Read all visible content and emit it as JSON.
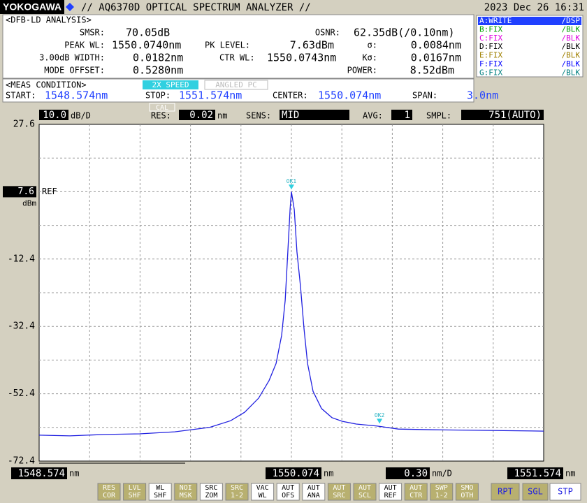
{
  "header": {
    "brand": "YOKOGAWA",
    "title": "// AQ6370D OPTICAL SPECTRUM ANALYZER //",
    "datetime": "2023 Dec 26 16:31"
  },
  "analysis": {
    "title": "<DFB-LD ANALYSIS>",
    "items": [
      {
        "label": "SMSR:",
        "value": "70.05dB"
      },
      {
        "label": "OSNR:",
        "value": "62.35dB(/0.10nm)"
      },
      {
        "label": "PEAK WL:",
        "value": "1550.0740nm"
      },
      {
        "label": "PK LEVEL:",
        "value": "7.63dBm"
      },
      {
        "label": "σ:",
        "value": "0.0084nm"
      },
      {
        "label": "3.00dB WIDTH:",
        "value": "0.0182nm"
      },
      {
        "label": "CTR WL:",
        "value": "1550.0743nm"
      },
      {
        "label": "Kσ:",
        "value": "0.0167nm"
      },
      {
        "label": "MODE OFFSET:",
        "value": "0.5280nm"
      },
      {
        "label": "POWER:",
        "value": "8.52dBm"
      }
    ]
  },
  "traces": [
    {
      "name": "A:WRITE",
      "mode": "/DSP",
      "color": "#ffffff",
      "active": true
    },
    {
      "name": "B:FIX",
      "mode": "/BLK",
      "color": "#00a000",
      "active": false
    },
    {
      "name": "C:FIX",
      "mode": "/BLK",
      "color": "#e000e0",
      "active": false
    },
    {
      "name": "D:FIX",
      "mode": "/BLK",
      "color": "#000000",
      "active": false
    },
    {
      "name": "E:FIX",
      "mode": "/BLK",
      "color": "#a08000",
      "active": false
    },
    {
      "name": "F:FIX",
      "mode": "/BLK",
      "color": "#0000ff",
      "active": false
    },
    {
      "name": "G:FIX",
      "mode": "/BLK",
      "color": "#008080",
      "active": false
    }
  ],
  "meas": {
    "title": "<MEAS CONDITION>",
    "tags": [
      "2X SPEED",
      "ANGLED PC"
    ],
    "fields": [
      {
        "label": "START:",
        "value": "1548.574nm"
      },
      {
        "label": "STOP:",
        "value": "1551.574nm"
      },
      {
        "label": "CENTER:",
        "value": "1550.074nm"
      },
      {
        "label": "SPAN:",
        "value": "3.0nm"
      }
    ]
  },
  "settings": {
    "scale": {
      "value": 10,
      "label": "10.0"
    },
    "scale_unit": "dB/D",
    "cal": "CAL",
    "res_label": "RES:",
    "res": 0.02,
    "res_unit": "nm",
    "sens_label": "SENS:",
    "sens": "MID",
    "avg_label": "AVG:",
    "avg": 1,
    "smpl_label": "SMPL:",
    "smpl": "751(AUTO)"
  },
  "plot": {
    "ylim": [
      -72.4,
      27.6
    ],
    "yticks": [
      27.6,
      -12.4,
      -32.4,
      -52.4,
      -72.4
    ],
    "ref_level": 7.6,
    "ref_label": "REF",
    "ref_unit": "dBm",
    "xlim": [
      1548.574,
      1551.574
    ],
    "center": 1550.074,
    "x_unit": "nm",
    "x_per_div": {
      "value": 0.3,
      "label": "0.30"
    },
    "x_per_div_unit": "nm/D",
    "grid": true,
    "color": "#2020e0",
    "trace": {
      "x": [
        1548.574,
        1548.757,
        1548.965,
        1549.172,
        1549.38,
        1549.588,
        1549.713,
        1549.796,
        1549.879,
        1549.941,
        1549.983,
        1550.016,
        1550.037,
        1550.053,
        1550.066,
        1550.074,
        1550.091,
        1550.107,
        1550.128,
        1550.149,
        1550.17,
        1550.203,
        1550.253,
        1550.315,
        1550.377,
        1550.46,
        1550.585,
        1550.71,
        1550.918,
        1551.25,
        1551.574
      ],
      "y": [
        -64.7,
        -64.9,
        -64.5,
        -64.3,
        -63.7,
        -62.4,
        -60.4,
        -57.9,
        -53.7,
        -48.5,
        -43.4,
        -35.1,
        -24.7,
        -10.2,
        2.3,
        7.63,
        2.3,
        -10.2,
        -20.5,
        -33.0,
        -43.4,
        -51.7,
        -56.8,
        -59.5,
        -60.6,
        -61.4,
        -62.0,
        -62.9,
        -63.1,
        -63.3,
        -63.5
      ]
    },
    "markers": [
      {
        "label": "OK1",
        "x": 1550.074,
        "y": 7.63
      },
      {
        "label": "OK2",
        "x": 1550.598,
        "y": -61.9
      }
    ]
  },
  "buttons": [
    [
      "RES",
      "COR"
    ],
    [
      "LVL",
      "SHF"
    ],
    [
      "WL",
      "SHF"
    ],
    [
      "NOI",
      "MSK"
    ],
    [
      "SRC",
      "ZOM"
    ],
    [
      "SRC",
      "1-2"
    ],
    [
      "VAC",
      "WL"
    ],
    [
      "AUT",
      "OFS"
    ],
    [
      "AUT",
      "ANA"
    ],
    [
      "AUT",
      "SRC"
    ],
    [
      "AUT",
      "SCL"
    ],
    [
      "AUT",
      "REF"
    ],
    [
      "AUT",
      "CTR"
    ],
    [
      "SWP",
      "1-2"
    ],
    [
      "SMO",
      "OTH"
    ]
  ],
  "buttons_light": [
    false,
    false,
    true,
    false,
    true,
    false,
    true,
    true,
    true,
    false,
    false,
    true,
    false,
    false,
    false
  ],
  "modes": [
    "RPT",
    "SGL",
    "STP"
  ]
}
